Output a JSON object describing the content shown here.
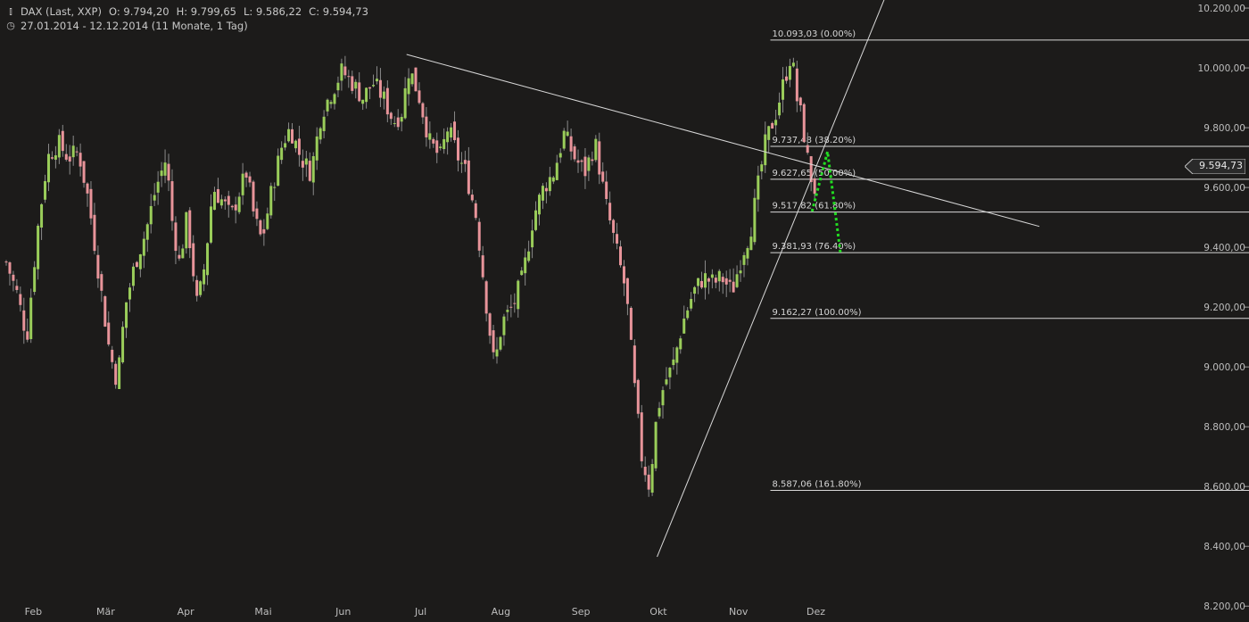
{
  "header": {
    "symbol": "DAX (Last, XXP)",
    "open_label": "O:",
    "open": "9.794,20",
    "high_label": "H:",
    "high": "9.799,65",
    "low_label": "L:",
    "low": "9.586,22",
    "close_label": "C:",
    "close": "9.594,73",
    "range": "27.01.2014 - 12.12.2014 (11 Monate, 1 Tag)",
    "chart_icon": "candlestick-icon",
    "clock_icon": "clock-icon"
  },
  "colors": {
    "background": "#1c1b1a",
    "up_candle": "#9acd5a",
    "down_candle": "#e8949a",
    "lines": "#d8d8d8",
    "projection": "#22dd22"
  },
  "last_price_label": "9.594,73",
  "chart_data": {
    "type": "candlestick",
    "title": "",
    "xlabel": "",
    "ylabel": "",
    "ylim": [
      8150,
      10230
    ],
    "y_ticks": [
      8200,
      8400,
      8600,
      8800,
      9000,
      9200,
      9400,
      9600,
      9800,
      10000,
      10200
    ],
    "y_tick_labels": [
      "8.200,00",
      "8.400,00",
      "8.600,00",
      "8.800,00",
      "9.000,00",
      "9.200,00",
      "9.400,00",
      "9.600,00",
      "9.800,00",
      "10.000,00",
      "10.200,00"
    ],
    "x_months": [
      {
        "label": "Feb",
        "day": 6
      },
      {
        "label": "Mär",
        "day": 34
      },
      {
        "label": "Apr",
        "day": 65
      },
      {
        "label": "Mai",
        "day": 95
      },
      {
        "label": "Jun",
        "day": 126
      },
      {
        "label": "Jul",
        "day": 156
      },
      {
        "label": "Aug",
        "day": 187
      },
      {
        "label": "Sep",
        "day": 218
      },
      {
        "label": "Okt",
        "day": 248
      },
      {
        "label": "Nov",
        "day": 279
      },
      {
        "label": "Dez",
        "day": 309
      }
    ],
    "close_path": [
      [
        0,
        9350
      ],
      [
        4,
        9250
      ],
      [
        8,
        9100
      ],
      [
        12,
        9450
      ],
      [
        16,
        9700
      ],
      [
        20,
        9750
      ],
      [
        24,
        9700
      ],
      [
        28,
        9720
      ],
      [
        32,
        9550
      ],
      [
        36,
        9300
      ],
      [
        40,
        9050
      ],
      [
        43,
        8950
      ],
      [
        46,
        9200
      ],
      [
        50,
        9350
      ],
      [
        54,
        9450
      ],
      [
        58,
        9600
      ],
      [
        62,
        9700
      ],
      [
        64,
        9500
      ],
      [
        67,
        9350
      ],
      [
        70,
        9500
      ],
      [
        74,
        9200
      ],
      [
        77,
        9350
      ],
      [
        80,
        9600
      ],
      [
        84,
        9550
      ],
      [
        87,
        9500
      ],
      [
        90,
        9580
      ],
      [
        93,
        9650
      ],
      [
        96,
        9500
      ],
      [
        99,
        9420
      ],
      [
        103,
        9600
      ],
      [
        107,
        9750
      ],
      [
        110,
        9800
      ],
      [
        114,
        9700
      ],
      [
        118,
        9650
      ],
      [
        122,
        9850
      ],
      [
        126,
        9920
      ],
      [
        130,
        9990
      ],
      [
        134,
        9950
      ],
      [
        138,
        9900
      ],
      [
        142,
        9950
      ],
      [
        146,
        9900
      ],
      [
        150,
        9820
      ],
      [
        153,
        9850
      ],
      [
        156,
        10000
      ],
      [
        160,
        9900
      ],
      [
        164,
        9750
      ],
      [
        168,
        9700
      ],
      [
        171,
        9800
      ],
      [
        175,
        9700
      ],
      [
        178,
        9650
      ],
      [
        182,
        9500
      ],
      [
        186,
        9200
      ],
      [
        189,
        9000
      ],
      [
        192,
        9150
      ],
      [
        196,
        9200
      ],
      [
        200,
        9300
      ],
      [
        204,
        9500
      ],
      [
        208,
        9600
      ],
      [
        212,
        9650
      ],
      [
        216,
        9780
      ],
      [
        220,
        9700
      ],
      [
        224,
        9650
      ],
      [
        228,
        9750
      ],
      [
        232,
        9550
      ],
      [
        236,
        9400
      ],
      [
        240,
        9250
      ],
      [
        243,
        8950
      ],
      [
        246,
        8700
      ],
      [
        249,
        8600
      ],
      [
        252,
        8850
      ],
      [
        255,
        8950
      ],
      [
        258,
        9000
      ],
      [
        262,
        9150
      ],
      [
        266,
        9250
      ],
      [
        270,
        9300
      ],
      [
        274,
        9280
      ],
      [
        277,
        9300
      ],
      [
        281,
        9250
      ],
      [
        285,
        9380
      ],
      [
        288,
        9450
      ],
      [
        291,
        9600
      ],
      [
        294,
        9750
      ],
      [
        298,
        9850
      ],
      [
        301,
        9950
      ],
      [
        304,
        10050
      ],
      [
        306,
        9900
      ],
      [
        308,
        9830
      ],
      [
        311,
        9650
      ],
      [
        313,
        9594.73
      ]
    ],
    "candles_count": 230,
    "fibonacci": {
      "levels": [
        {
          "label": "10.093,03 (0.00%)",
          "value": 10093.03
        },
        {
          "label": "9.737,48 (38.20%)",
          "value": 9737.48
        },
        {
          "label": "9.627,65 (50.00%)",
          "value": 9627.65
        },
        {
          "label": "9.517,82 (61.80%)",
          "value": 9517.82
        },
        {
          "label": "9.381,93 (76.40%)",
          "value": 9381.93
        },
        {
          "label": "9.162,27 (100.00%)",
          "value": 9162.27
        },
        {
          "label": "8.587,06 (161.80%)",
          "value": 8587.06
        }
      ],
      "start_day": 300
    },
    "trendlines": [
      {
        "name": "resistance-trendline",
        "points": [
          [
            155,
            10045
          ],
          [
            400,
            9470
          ]
        ]
      },
      {
        "name": "support-trendline",
        "points": [
          [
            252,
            8365
          ],
          [
            340,
            10230
          ]
        ]
      }
    ],
    "projection": {
      "points": [
        [
          312,
          9520
        ],
        [
          318,
          9720
        ],
        [
          323,
          9380
        ]
      ]
    },
    "last_price": 9594.73,
    "grid": false
  }
}
